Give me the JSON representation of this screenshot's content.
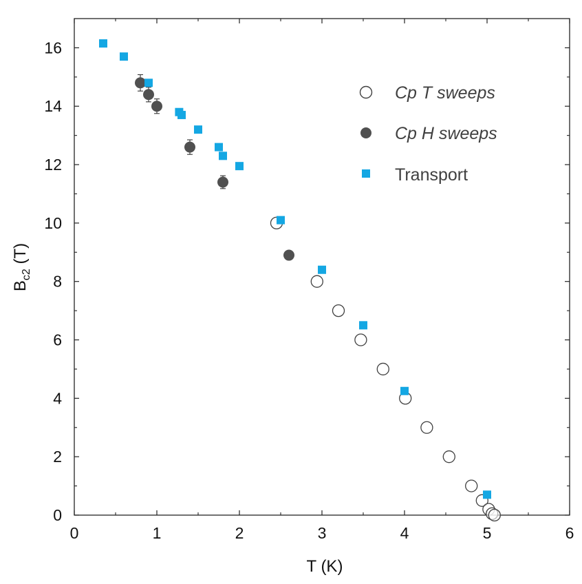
{
  "chart_data": {
    "type": "scatter",
    "xlabel": "T (K)",
    "ylabel_main": "B",
    "ylabel_sub": "c2",
    "ylabel_unit": " (T)",
    "xlim": [
      0,
      6
    ],
    "ylim": [
      0,
      17
    ],
    "xticks": [
      0,
      1,
      2,
      3,
      4,
      5,
      6
    ],
    "yticks": [
      0,
      2,
      4,
      6,
      8,
      10,
      12,
      14,
      16
    ],
    "grid": false,
    "legend_position": "top-right",
    "colors": {
      "cp_t": "#404040",
      "cp_h": "#505050",
      "transport": "#14a7e3"
    },
    "series": [
      {
        "name": "Cp T sweeps",
        "marker": "open-circle",
        "points": [
          {
            "x": 2.45,
            "y": 10.0
          },
          {
            "x": 2.94,
            "y": 8.0
          },
          {
            "x": 3.2,
            "y": 7.0
          },
          {
            "x": 3.47,
            "y": 6.0
          },
          {
            "x": 3.74,
            "y": 5.0
          },
          {
            "x": 4.01,
            "y": 4.0
          },
          {
            "x": 4.27,
            "y": 3.0
          },
          {
            "x": 4.54,
            "y": 2.0
          },
          {
            "x": 4.81,
            "y": 1.0
          },
          {
            "x": 4.94,
            "y": 0.5
          },
          {
            "x": 5.02,
            "y": 0.2
          },
          {
            "x": 5.06,
            "y": 0.05
          },
          {
            "x": 5.09,
            "y": 0.0
          }
        ]
      },
      {
        "name": "Cp H sweeps",
        "marker": "filled-circle",
        "points": [
          {
            "x": 0.8,
            "y": 14.8,
            "err": 0.28
          },
          {
            "x": 0.9,
            "y": 14.4,
            "err": 0.25
          },
          {
            "x": 1.0,
            "y": 14.0,
            "err": 0.25
          },
          {
            "x": 1.4,
            "y": 12.6,
            "err": 0.25
          },
          {
            "x": 1.8,
            "y": 11.4,
            "err": 0.22
          },
          {
            "x": 2.6,
            "y": 8.9,
            "err": 0.12
          }
        ]
      },
      {
        "name": "Transport",
        "marker": "square",
        "points": [
          {
            "x": 0.35,
            "y": 16.15
          },
          {
            "x": 0.6,
            "y": 15.7
          },
          {
            "x": 0.9,
            "y": 14.8
          },
          {
            "x": 1.27,
            "y": 13.8
          },
          {
            "x": 1.3,
            "y": 13.7
          },
          {
            "x": 1.5,
            "y": 13.2
          },
          {
            "x": 1.75,
            "y": 12.6
          },
          {
            "x": 1.8,
            "y": 12.3
          },
          {
            "x": 2.0,
            "y": 11.95
          },
          {
            "x": 2.5,
            "y": 10.1
          },
          {
            "x": 3.0,
            "y": 8.4
          },
          {
            "x": 3.5,
            "y": 6.5
          },
          {
            "x": 4.0,
            "y": 4.25
          },
          {
            "x": 5.0,
            "y": 0.7
          }
        ]
      }
    ]
  }
}
